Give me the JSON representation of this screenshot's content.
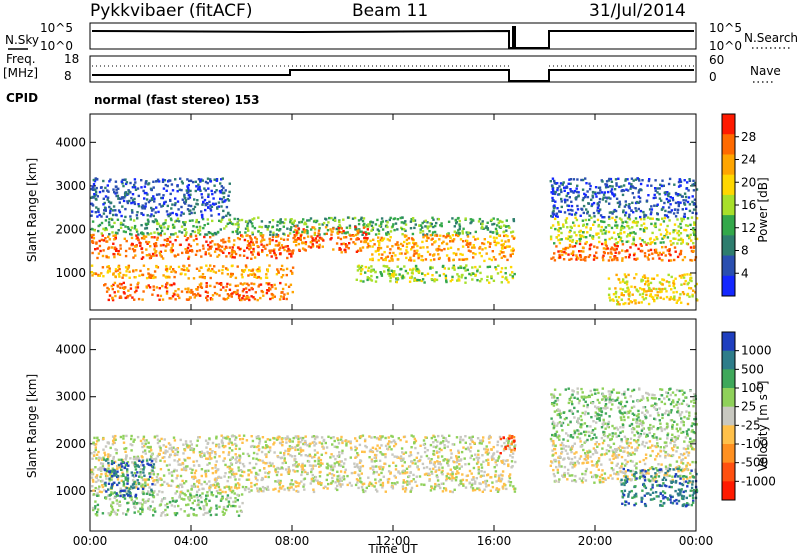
{
  "header": {
    "station": "Pykkvibaer (fitACF)",
    "beam": "Beam 11",
    "date": "31/Jul/2014"
  },
  "top_panels": {
    "nsky": {
      "left_label": "N.Sky",
      "right_label": "N.Search",
      "left_ticks": [
        "10^5",
        "10^0"
      ],
      "right_ticks": [
        "10^5",
        "10^0"
      ]
    },
    "freq": {
      "left_label_1": "Freq.",
      "left_label_2": "[MHz]",
      "left_ticks": [
        "18",
        "8"
      ],
      "right_label": "Nave",
      "right_ticks": [
        "60",
        "0"
      ]
    },
    "cpid": {
      "label": "CPID",
      "mode_text": "normal (fast stereo) 153"
    }
  },
  "chart_data": [
    {
      "type": "heatmap",
      "name": "power",
      "ylabel": "Slant Range [km]",
      "y_ticks": [
        "1000",
        "2000",
        "3000",
        "4000"
      ],
      "ylim": [
        150,
        4650
      ],
      "x_ticks": [
        "00:00",
        "04:00",
        "08:00",
        "12:00",
        "16:00",
        "20:00",
        "00:00"
      ],
      "xlim_hours": [
        0,
        24
      ],
      "data_gap_hours": [
        16.8,
        18.2
      ],
      "colorbar_label": "Power [dB]",
      "colorbar_ticks": [
        "28",
        "24",
        "20",
        "16",
        "12",
        "8",
        "4"
      ],
      "colorbar_colors": [
        "#ff1a00",
        "#ff6a00",
        "#ffa500",
        "#ffd700",
        "#a8e02a",
        "#33a84a",
        "#2e7d6e",
        "#2a4fb0",
        "#1428ff"
      ],
      "bands": [
        {
          "t0": 0.0,
          "t1": 8.0,
          "r0": 1350,
          "r1": 1900,
          "level": 7
        },
        {
          "t0": 0.0,
          "t1": 8.0,
          "r0": 900,
          "r1": 1200,
          "level": 6
        },
        {
          "t0": 0.5,
          "t1": 8.0,
          "r0": 400,
          "r1": 800,
          "level": 7
        },
        {
          "t0": 0.0,
          "t1": 16.8,
          "r0": 1900,
          "r1": 2300,
          "level": 3
        },
        {
          "t0": 0.0,
          "t1": 5.5,
          "r0": 2300,
          "r1": 3200,
          "level": 1
        },
        {
          "t0": 8.0,
          "t1": 11.0,
          "r0": 1500,
          "r1": 2100,
          "level": 7
        },
        {
          "t0": 11.0,
          "t1": 16.8,
          "r0": 1300,
          "r1": 1900,
          "level": 6
        },
        {
          "t0": 10.5,
          "t1": 16.8,
          "r0": 800,
          "r1": 1200,
          "level": 4
        },
        {
          "t0": 18.2,
          "t1": 24.0,
          "r0": 1300,
          "r1": 1700,
          "level": 7
        },
        {
          "t0": 18.2,
          "t1": 24.0,
          "r0": 1700,
          "r1": 2300,
          "level": 4
        },
        {
          "t0": 18.2,
          "t1": 24.0,
          "r0": 2300,
          "r1": 3200,
          "level": 1
        },
        {
          "t0": 20.5,
          "t1": 24.0,
          "r0": 300,
          "r1": 1000,
          "level": 5
        }
      ]
    },
    {
      "type": "heatmap",
      "name": "velocity",
      "ylabel": "Slant Range [km]",
      "y_ticks": [
        "1000",
        "2000",
        "3000",
        "4000"
      ],
      "ylim": [
        150,
        4650
      ],
      "x_ticks": [
        "00:00",
        "04:00",
        "08:00",
        "12:00",
        "16:00",
        "20:00",
        "00:00"
      ],
      "xlim_hours": [
        0,
        24
      ],
      "xlabel": "Time UT",
      "data_gap_hours": [
        16.8,
        18.2
      ],
      "colorbar_label": "Velocity [m s",
      "colorbar_label_sup": "-1",
      "colorbar_label_end": "]",
      "colorbar_ticks": [
        "1000",
        "500",
        "100",
        "25",
        "-25",
        "-100",
        "-500",
        "-1000"
      ],
      "colorbar_colors": [
        "#1f3fbf",
        "#2e7d8a",
        "#3fa85a",
        "#8fd15a",
        "#c8c8c0",
        "#ffc04a",
        "#ff9020",
        "#ff5010",
        "#ff1a00"
      ],
      "bands": [
        {
          "t0": 0.0,
          "t1": 16.8,
          "r0": 1000,
          "r1": 2200,
          "level": 4
        },
        {
          "t0": 0.0,
          "t1": 6.0,
          "r0": 500,
          "r1": 1000,
          "level": 5
        },
        {
          "t0": 0.5,
          "t1": 2.5,
          "r0": 900,
          "r1": 1700,
          "level": 7
        },
        {
          "t0": 16.2,
          "t1": 16.8,
          "r0": 1800,
          "r1": 2200,
          "level": 1
        },
        {
          "t0": 18.2,
          "t1": 24.0,
          "r0": 1200,
          "r1": 2100,
          "level": 4
        },
        {
          "t0": 21.0,
          "t1": 24.0,
          "r0": 700,
          "r1": 1500,
          "level": 7
        },
        {
          "t0": 18.2,
          "t1": 24.0,
          "r0": 2100,
          "r1": 3200,
          "level": 5
        }
      ]
    }
  ]
}
